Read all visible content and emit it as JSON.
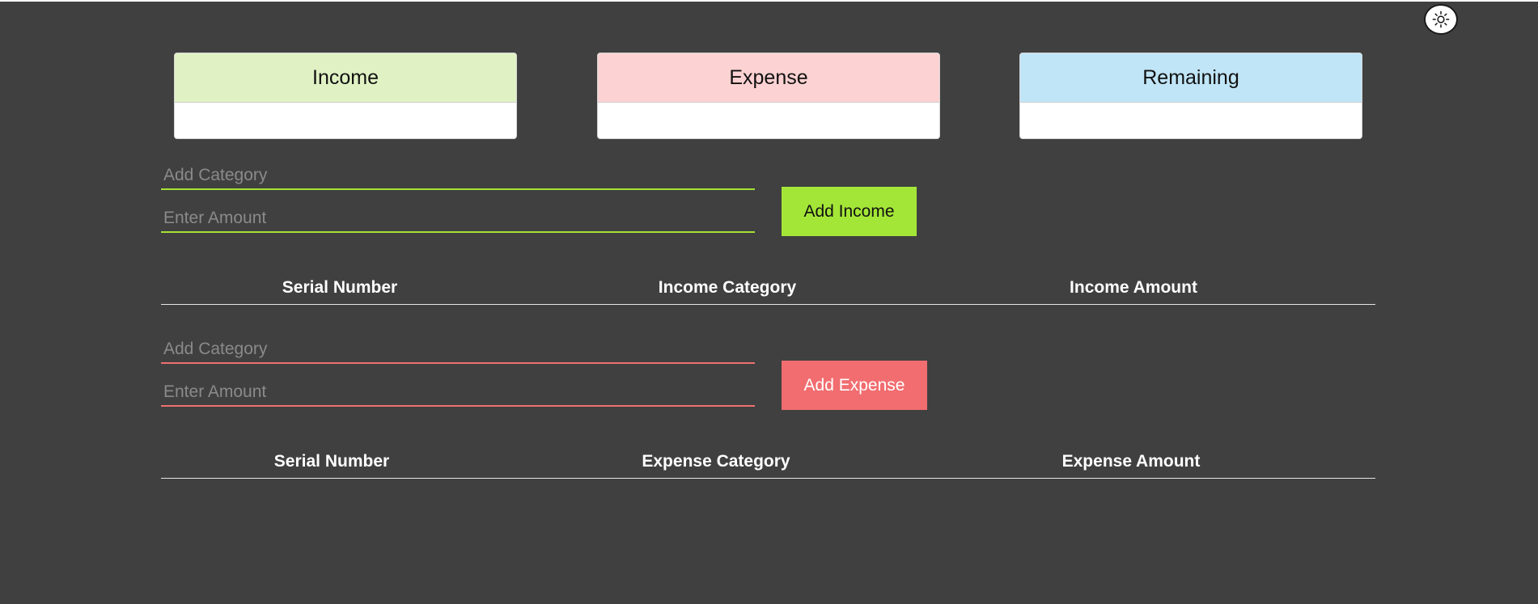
{
  "theme_toggle": {
    "icon": "sun-icon",
    "color": "#ffffff"
  },
  "summary": {
    "income": {
      "label": "Income",
      "value": "",
      "color": "#e0f2c4"
    },
    "expense": {
      "label": "Expense",
      "value": "",
      "color": "#fdd2d2"
    },
    "remaining": {
      "label": "Remaining",
      "value": "",
      "color": "#c0e5f7"
    }
  },
  "income_form": {
    "category_placeholder": "Add Category",
    "category_value": "",
    "amount_placeholder": "Enter Amount",
    "amount_value": "",
    "button_label": "Add Income",
    "accent_color": "#a4e637"
  },
  "income_table": {
    "columns": [
      "Serial Number",
      "Income Category",
      "Income Amount"
    ],
    "rows": []
  },
  "expense_form": {
    "category_placeholder": "Add Category",
    "category_value": "",
    "amount_placeholder": "Enter Amount",
    "amount_value": "",
    "button_label": "Add Expense",
    "accent_color": "#f16d70"
  },
  "expense_table": {
    "columns": [
      "Serial Number",
      "Expense Category",
      "Expense Amount"
    ],
    "rows": []
  },
  "colors": {
    "background": "#404040",
    "income_accent": "#a4e637",
    "expense_accent": "#f16d70"
  }
}
